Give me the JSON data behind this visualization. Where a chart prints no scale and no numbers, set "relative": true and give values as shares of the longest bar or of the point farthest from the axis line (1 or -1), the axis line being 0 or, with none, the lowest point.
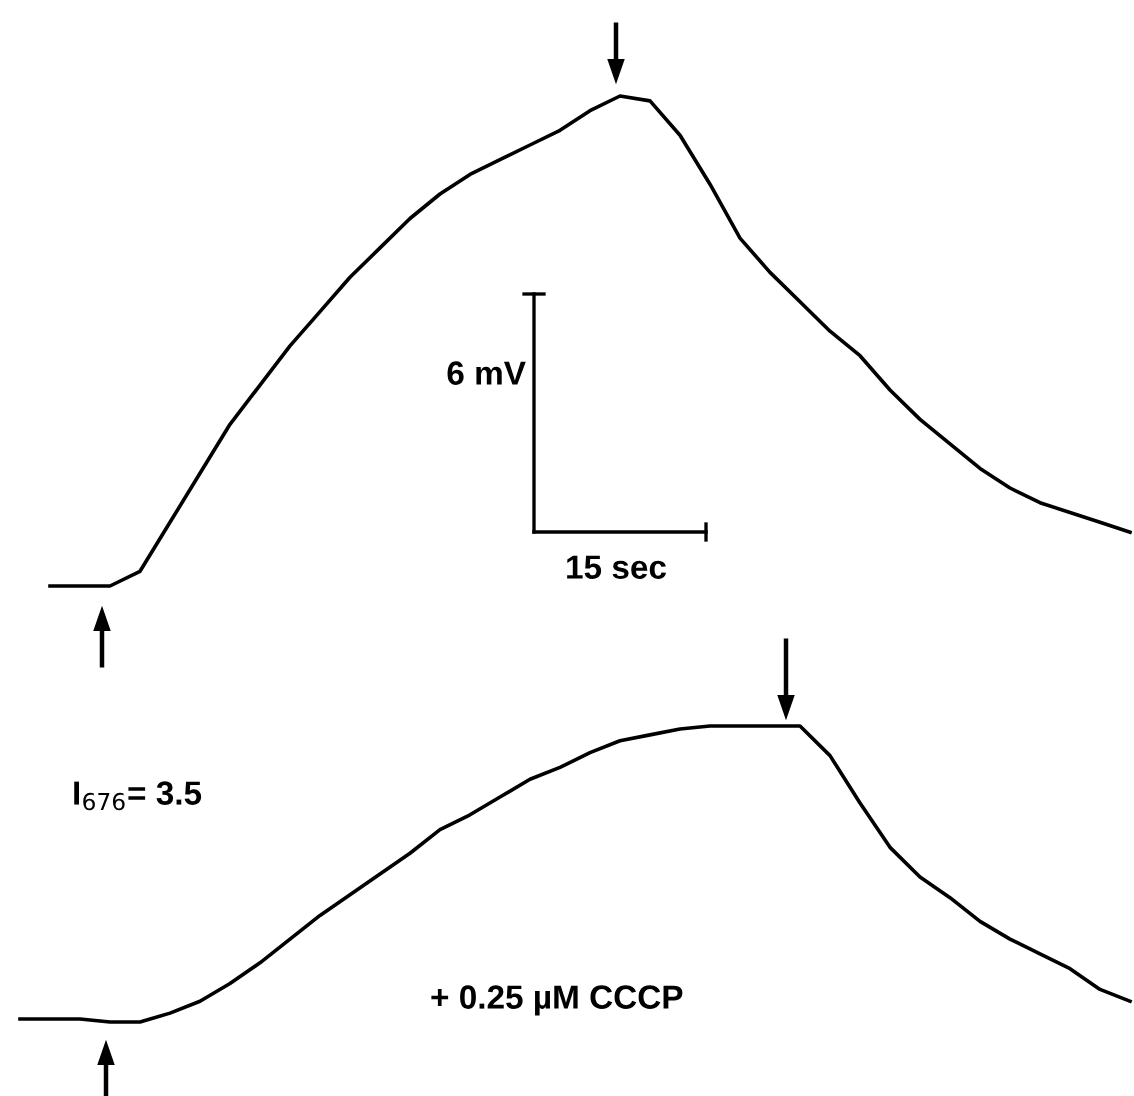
{
  "chart_data": [
    {
      "type": "line",
      "relative": true,
      "categories": [
        null,
        null,
        null,
        null,
        null,
        null,
        null,
        null,
        null,
        null,
        null,
        null,
        null,
        null,
        null,
        null,
        null,
        null,
        null,
        null,
        null,
        null,
        null,
        null,
        null,
        null,
        null,
        null,
        null,
        null,
        null,
        null,
        null,
        null,
        null,
        null,
        null
      ],
      "series": [
        {
          "color": "#000000",
          "values": [
            0,
            0,
            0,
            0.03,
            0.13,
            0.23,
            0.33,
            0.41,
            0.49,
            0.56,
            0.63,
            0.69,
            0.75,
            0.8,
            0.84,
            0.87,
            0.9,
            0.93,
            0.97,
            1.0,
            0.99,
            0.92,
            0.82,
            0.71,
            0.64,
            0.58,
            0.52,
            0.47,
            0.4,
            0.34,
            0.29,
            0.24,
            0.2,
            0.17,
            0.15,
            0.13,
            0.11
          ]
        }
      ],
      "annotations": [
        "6 mV",
        "15 sec"
      ]
    },
    {
      "type": "line",
      "relative": true,
      "categories": [
        null,
        null,
        null,
        null,
        null,
        null,
        null,
        null,
        null,
        null,
        null,
        null,
        null,
        null,
        null,
        null,
        null,
        null,
        null,
        null,
        null,
        null,
        null,
        null,
        null,
        null,
        null,
        null,
        null,
        null,
        null,
        null,
        null,
        null,
        null,
        null,
        null,
        null
      ],
      "series": [
        {
          "color": "#000000",
          "values": [
            0.01,
            0.01,
            0.01,
            0,
            0,
            0.03,
            0.07,
            0.13,
            0.2,
            0.28,
            0.36,
            0.43,
            0.5,
            0.57,
            0.65,
            0.7,
            0.76,
            0.82,
            0.86,
            0.91,
            0.95,
            0.97,
            0.99,
            1,
            1,
            1,
            1,
            0.9,
            0.74,
            0.59,
            0.49,
            0.42,
            0.34,
            0.28,
            0.23,
            0.18,
            0.11,
            0.07
          ]
        }
      ],
      "annotations": [
        "I$_{676}$= 3.5",
        "+ 0.25 µM CCCP"
      ]
    }
  ]
}
